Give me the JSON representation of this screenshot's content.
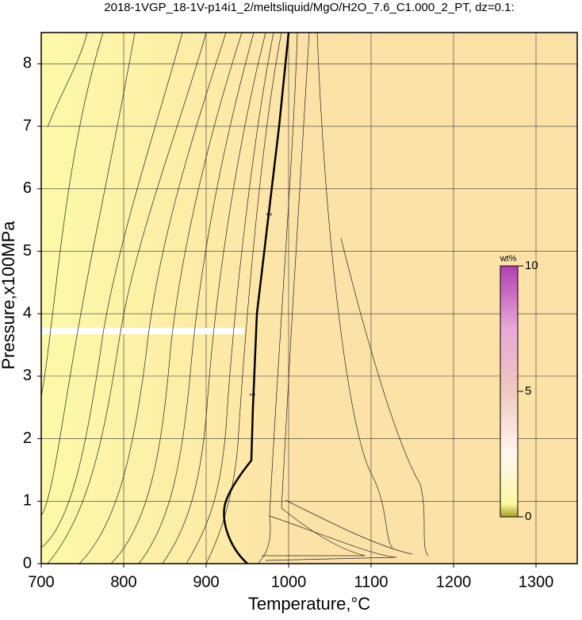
{
  "chart_data": {
    "type": "contour",
    "title": "2018-1VGP_18-1V-p14i1_2/meltsliquid/MgO/H2O_7.6_C1.000_2_PT, dz=0.1:",
    "x_label": "Temperature,°C",
    "y_label": "Pressure,x100MPa",
    "xlim": [
      700,
      1350
    ],
    "xticks": [
      700,
      800,
      900,
      1000,
      1100,
      1200,
      1300
    ],
    "ylim": [
      0,
      8.5
    ],
    "yticks": [
      0,
      1,
      2,
      3,
      4,
      5,
      6,
      7,
      8
    ],
    "grid": true,
    "contour_label": "1",
    "colorbar": {
      "label": "wt%",
      "lim": [
        0,
        10
      ],
      "ticks": [
        0,
        5,
        10
      ]
    }
  }
}
